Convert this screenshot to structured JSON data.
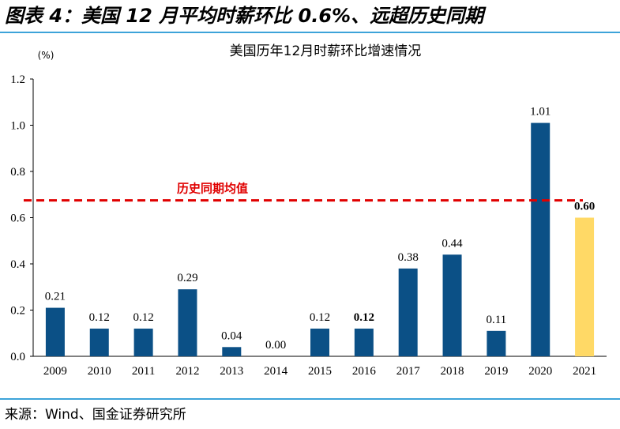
{
  "figure_title": "图表 4：美国 12 月平均时薪环比 0.6%、远超历史同期",
  "source": "来源：Wind、国金证券研究所",
  "chart_data": {
    "type": "bar",
    "title": "美国历年12月时薪环比增速情况",
    "ylabel": "(%)",
    "xlabel": "",
    "ylim": [
      0,
      1.2
    ],
    "yticks": [
      "0.0",
      "0.2",
      "0.4",
      "0.6",
      "0.8",
      "1.0",
      "1.2"
    ],
    "categories": [
      "2009",
      "2010",
      "2011",
      "2012",
      "2013",
      "2014",
      "2015",
      "2016",
      "2017",
      "2018",
      "2019",
      "2020",
      "2021"
    ],
    "values": [
      0.21,
      0.12,
      0.12,
      0.29,
      0.04,
      0.0,
      0.12,
      0.12,
      0.38,
      0.44,
      0.11,
      1.01,
      0.6
    ],
    "data_labels": [
      "0.21",
      "0.12",
      "0.12",
      "0.29",
      "0.04",
      "0.00",
      "0.12",
      "0.12",
      "0.38",
      "0.44",
      "0.11",
      "1.01",
      "0.60"
    ],
    "colors": {
      "default": "#0b5086",
      "highlight_bar": "#ffd966",
      "highlight_label": "#e00000",
      "reference_line": "#e00000"
    },
    "highlight_bar_index": 12,
    "highlight_label_indices": [
      7,
      12
    ],
    "reference_line": {
      "label": "历史同期均值",
      "value": 0.675
    }
  }
}
